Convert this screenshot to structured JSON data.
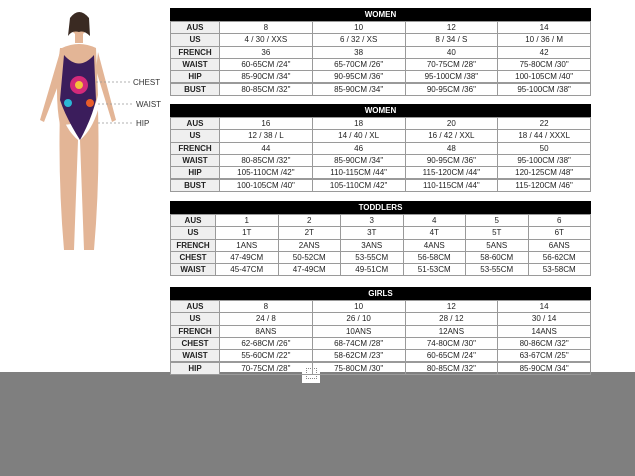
{
  "figure_labels": [
    "CHEST",
    "WAIST",
    "HIP"
  ],
  "tables": [
    {
      "title": "WOMEN",
      "rows": [
        {
          "label": "AUS",
          "cells": [
            "8",
            "10",
            "12",
            "14"
          ]
        },
        {
          "label": "US",
          "cells": [
            "4 / 30 / XXS",
            "6 / 32 / XS",
            "8 / 34 / S",
            "10 / 36 / M"
          ]
        },
        {
          "label": "FRENCH",
          "cells": [
            "36",
            "38",
            "40",
            "42"
          ]
        },
        {
          "label": "WAIST",
          "cells": [
            "60-65CM /24\"",
            "65-70CM /26\"",
            "70-75CM /28\"",
            "75-80CM /30\""
          ]
        },
        {
          "label": "HIP",
          "cells": [
            "85-90CM /34\"",
            "90-95CM /36\"",
            "95-100CM /38\"",
            "100-105CM /40\""
          ]
        },
        {
          "label": "BUST",
          "cells": [
            "80-85CM /32\"",
            "85-90CM /34\"",
            "90-95CM /36\"",
            "95-100CM /38\""
          ]
        }
      ]
    },
    {
      "title": "WOMEN",
      "rows": [
        {
          "label": "AUS",
          "cells": [
            "16",
            "18",
            "20",
            "22"
          ]
        },
        {
          "label": "US",
          "cells": [
            "12 / 38 / L",
            "14 / 40 / XL",
            "16 / 42 / XXL",
            "18 / 44 / XXXL"
          ]
        },
        {
          "label": "FRENCH",
          "cells": [
            "44",
            "46",
            "48",
            "50"
          ]
        },
        {
          "label": "WAIST",
          "cells": [
            "80-85CM /32\"",
            "85-90CM /34\"",
            "90-95CM /36\"",
            "95-100CM /38\""
          ]
        },
        {
          "label": "HIP",
          "cells": [
            "105-110CM /42\"",
            "110-115CM /44\"",
            "115-120CM /44\"",
            "120-125CM /48\""
          ]
        },
        {
          "label": "BUST",
          "cells": [
            "100-105CM /40\"",
            "105-110CM /42\"",
            "110-115CM /44\"",
            "115-120CM /46\""
          ]
        }
      ]
    },
    {
      "title": "TODDLERS",
      "rows": [
        {
          "label": "AUS",
          "cells": [
            "1",
            "2",
            "3",
            "4",
            "5",
            "6"
          ]
        },
        {
          "label": "US",
          "cells": [
            "1T",
            "2T",
            "3T",
            "4T",
            "5T",
            "6T"
          ]
        },
        {
          "label": "FRENCH",
          "cells": [
            "1ANS",
            "2ANS",
            "3ANS",
            "4ANS",
            "5ANS",
            "6ANS"
          ]
        },
        {
          "label": "CHEST",
          "cells": [
            "47-49CM",
            "50-52CM",
            "53-55CM",
            "56-58CM",
            "58-60CM",
            "56-62CM"
          ]
        },
        {
          "label": "WAIST",
          "cells": [
            "45-47CM",
            "47-49CM",
            "49-51CM",
            "51-53CM",
            "53-55CM",
            "53-58CM"
          ]
        }
      ]
    },
    {
      "title": "GIRLS",
      "rows": [
        {
          "label": "AUS",
          "cells": [
            "8",
            "10",
            "12",
            "14"
          ]
        },
        {
          "label": "US",
          "cells": [
            "24 / 8",
            "26 / 10",
            "28 / 12",
            "30 / 14"
          ]
        },
        {
          "label": "FRENCH",
          "cells": [
            "8ANS",
            "10ANS",
            "12ANS",
            "14ANS"
          ]
        },
        {
          "label": "CHEST",
          "cells": [
            "62-68CM /26\"",
            "68-74CM /28\"",
            "74-80CM /30\"",
            "80-86CM /32\""
          ]
        },
        {
          "label": "WAIST",
          "cells": [
            "55-60CM /22\"",
            "58-62CM /23\"",
            "60-65CM /24\"",
            "63-67CM /25\""
          ]
        },
        {
          "label": "HIP",
          "cells": [
            "70-75CM /28\"",
            "75-80CM /30\"",
            "80-85CM /32\"",
            "85-90CM /34\""
          ]
        }
      ]
    }
  ]
}
